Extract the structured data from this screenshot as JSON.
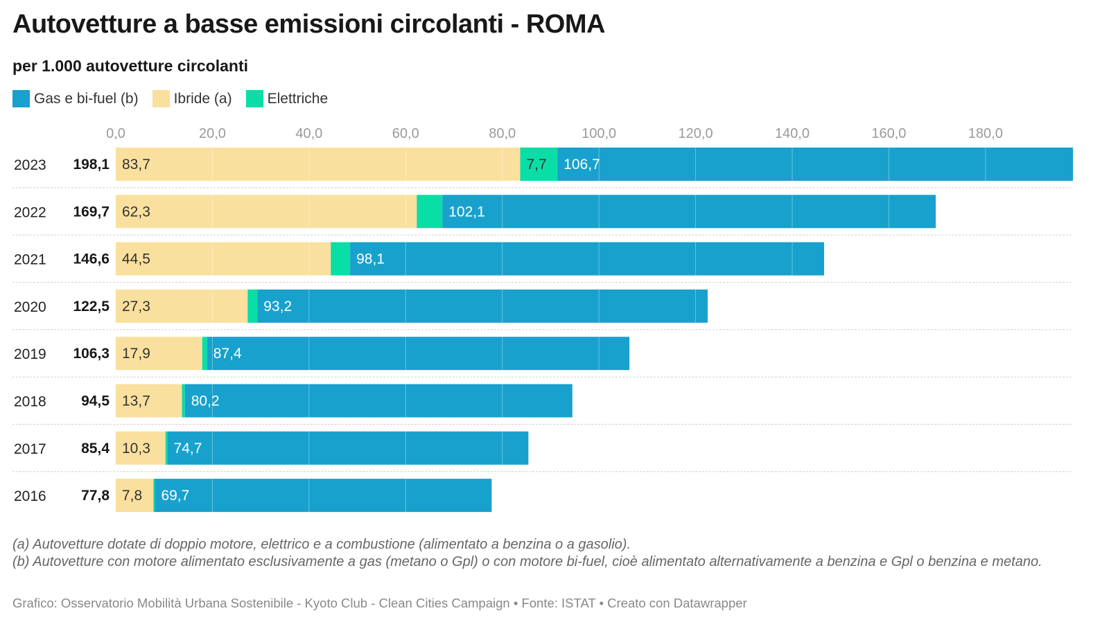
{
  "title": "Autovetture a basse emissioni circolanti - ROMA",
  "subtitle": "per 1.000 autovetture circolanti",
  "legend": [
    {
      "label": "Gas e bi-fuel (b)",
      "color": "#18a1cd"
    },
    {
      "label": "Ibride (a)",
      "color": "#fae09e"
    },
    {
      "label": "Elettriche",
      "color": "#09dea6"
    }
  ],
  "chart_data": {
    "type": "bar",
    "orientation": "horizontal",
    "stacked": true,
    "xlim": [
      0,
      198.1
    ],
    "x_ticks": [
      "0,0",
      "20,0",
      "40,0",
      "60,0",
      "80,0",
      "100,0",
      "120,0",
      "140,0",
      "160,0",
      "180,0"
    ],
    "x_tick_values": [
      0,
      20,
      40,
      60,
      80,
      100,
      120,
      140,
      160,
      180
    ],
    "grid": true,
    "categories": [
      "2023",
      "2022",
      "2021",
      "2020",
      "2019",
      "2018",
      "2017",
      "2016"
    ],
    "totals": [
      "198,1",
      "169,7",
      "146,6",
      "122,5",
      "106,3",
      "94,5",
      "85,4",
      "77,8"
    ],
    "series": [
      {
        "name": "Ibride (a)",
        "color": "#fae09e",
        "values": [
          83.7,
          62.3,
          44.5,
          27.3,
          17.9,
          13.7,
          10.3,
          7.8
        ],
        "labels": [
          "83,7",
          "62,3",
          "44,5",
          "27,3",
          "17,9",
          "13,7",
          "10,3",
          "7,8"
        ]
      },
      {
        "name": "Elettriche",
        "color": "#09dea6",
        "values": [
          7.7,
          5.3,
          4.0,
          2.0,
          1.0,
          0.6,
          0.4,
          0.3
        ],
        "labels": [
          "7,7",
          "",
          "",
          "",
          "",
          "",
          "",
          ""
        ]
      },
      {
        "name": "Gas e bi-fuel (b)",
        "color": "#18a1cd",
        "values": [
          106.7,
          102.1,
          98.1,
          93.2,
          87.4,
          80.2,
          74.7,
          69.7
        ],
        "labels": [
          "106,7",
          "102,1",
          "98,1",
          "93,2",
          "87,4",
          "80,2",
          "74,7",
          "69,7"
        ]
      }
    ]
  },
  "footnotes": [
    "(a) Autovetture dotate di doppio motore, elettrico e a combustione (alimentato a benzina o a gasolio).",
    "(b) Autovetture con motore alimentato esclusivamente a gas (metano o Gpl) o con motore bi-fuel, cioè alimentato alternativamente a benzina e Gpl o benzina e metano."
  ],
  "source": "Grafico: Osservatorio Mobilità Urbana Sostenibile - Kyoto Club - Clean Cities Campaign • Fonte: ISTAT • Creato con Datawrapper"
}
